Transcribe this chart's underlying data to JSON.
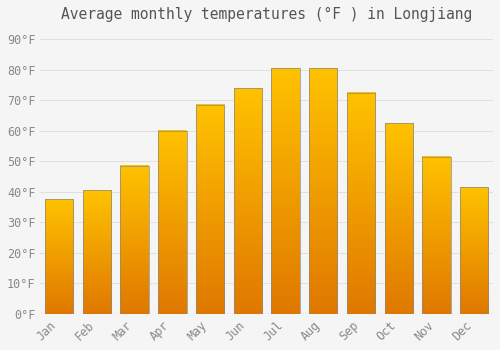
{
  "title": "Average monthly temperatures (°F ) in Longjiang",
  "months": [
    "Jan",
    "Feb",
    "Mar",
    "Apr",
    "May",
    "Jun",
    "Jul",
    "Aug",
    "Sep",
    "Oct",
    "Nov",
    "Dec"
  ],
  "values": [
    37.5,
    40.5,
    48.5,
    60.0,
    68.5,
    74.0,
    80.5,
    80.5,
    72.5,
    62.5,
    51.5,
    41.5
  ],
  "bar_color_top": "#FFC200",
  "bar_color_bottom": "#E07800",
  "bar_edge_color": "#888888",
  "background_color": "#F5F5F5",
  "grid_color": "#E0E0E0",
  "text_color": "#888888",
  "title_color": "#555555",
  "ylim": [
    0,
    93
  ],
  "yticks": [
    0,
    10,
    20,
    30,
    40,
    50,
    60,
    70,
    80,
    90
  ],
  "title_fontsize": 10.5,
  "tick_fontsize": 8.5,
  "bar_width": 0.75
}
